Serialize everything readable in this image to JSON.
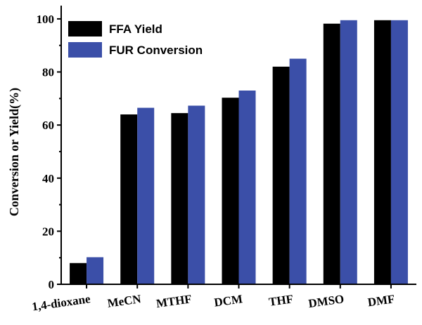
{
  "chart_data": {
    "type": "bar",
    "categories": [
      "1,4-dioxane",
      "MeCN",
      "MTHF",
      "DCM",
      "THF",
      "DMSO",
      "DMF"
    ],
    "series": [
      {
        "name": "FFA Yield",
        "color": "#000000",
        "values": [
          8,
          64,
          64.5,
          70.3,
          82,
          98.2,
          99.5
        ]
      },
      {
        "name": "FUR Conversion",
        "color": "#3b4fa8",
        "values": [
          10.2,
          66.5,
          67.3,
          73,
          85,
          99.5,
          99.5
        ]
      }
    ],
    "ylabel": "Conversion or Yield(%)",
    "ylim": [
      0,
      105
    ],
    "yticks": [
      0,
      20,
      40,
      60,
      80,
      100
    ],
    "legend_position": "top-left",
    "grid": false
  }
}
